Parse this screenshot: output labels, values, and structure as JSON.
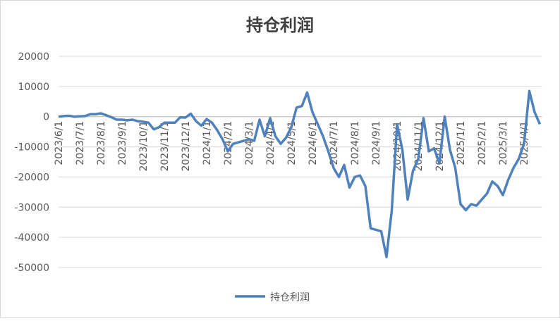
{
  "chart_data": {
    "type": "line",
    "title": "持仓利润",
    "categories": [
      "2023/6/1",
      null,
      null,
      null,
      "2023/7/1",
      null,
      null,
      null,
      "2023/8/1",
      null,
      null,
      null,
      "2023/9/1",
      null,
      null,
      null,
      "2023/10/1",
      null,
      null,
      null,
      "2023/11/1",
      null,
      null,
      null,
      "2023/12/1",
      null,
      null,
      null,
      "2024/1/1",
      null,
      null,
      null,
      "2024/2/1",
      null,
      null,
      null,
      "2024/3/1",
      null,
      null,
      null,
      "2024/4/1",
      null,
      null,
      null,
      "2024/5/1",
      null,
      null,
      null,
      "2024/6/1",
      null,
      null,
      null,
      "2024/7/1",
      null,
      null,
      null,
      "2024/8/1",
      null,
      null,
      null,
      "2024/9/1",
      null,
      null,
      null,
      "2024/10/1",
      null,
      null,
      null,
      "2024/11/1",
      null,
      null,
      null,
      "2024/12/1",
      null,
      null,
      null,
      "2025/1/1",
      null,
      null,
      null,
      "2025/2/1",
      null,
      null,
      null,
      "2025/3/1",
      null,
      null,
      null,
      "2025/4/1",
      null,
      null,
      null
    ],
    "series": [
      {
        "name": "持仓利润",
        "color": "#4f81bd",
        "values": [
          0,
          200,
          300,
          0,
          100,
          200,
          800,
          800,
          1100,
          500,
          -200,
          -1000,
          -1000,
          -1200,
          -1000,
          -1500,
          -1700,
          -2000,
          -4200,
          -3500,
          -2000,
          -2000,
          -2000,
          -200,
          -300,
          1000,
          -1500,
          -3000,
          -800,
          -2000,
          -4500,
          -7500,
          -11500,
          -9000,
          -8500,
          -8000,
          -7500,
          -8000,
          -1000,
          -6500,
          -500,
          -6500,
          -9000,
          -7000,
          -3500,
          3000,
          3500,
          8000,
          1500,
          -2500,
          -6500,
          -11500,
          -17000,
          -20000,
          -16000,
          -23500,
          -20000,
          -19500,
          -23000,
          -37000,
          -37500,
          -38000,
          -46500,
          -31000,
          -2500,
          -11000,
          -27500,
          -18000,
          -14000,
          -500,
          -11500,
          -10500,
          -15500,
          0,
          -11000,
          -17000,
          -29000,
          -31000,
          -29000,
          -29500,
          -27500,
          -25500,
          -21500,
          -23000,
          -26000,
          -21000,
          -17000,
          -14000,
          -9000,
          8500,
          1500,
          -2500
        ]
      }
    ],
    "ylim": [
      -50000,
      20000
    ],
    "yticks": [
      -50000,
      -40000,
      -30000,
      -20000,
      -10000,
      0,
      10000,
      20000
    ],
    "grid": true,
    "legend": "bottom"
  }
}
